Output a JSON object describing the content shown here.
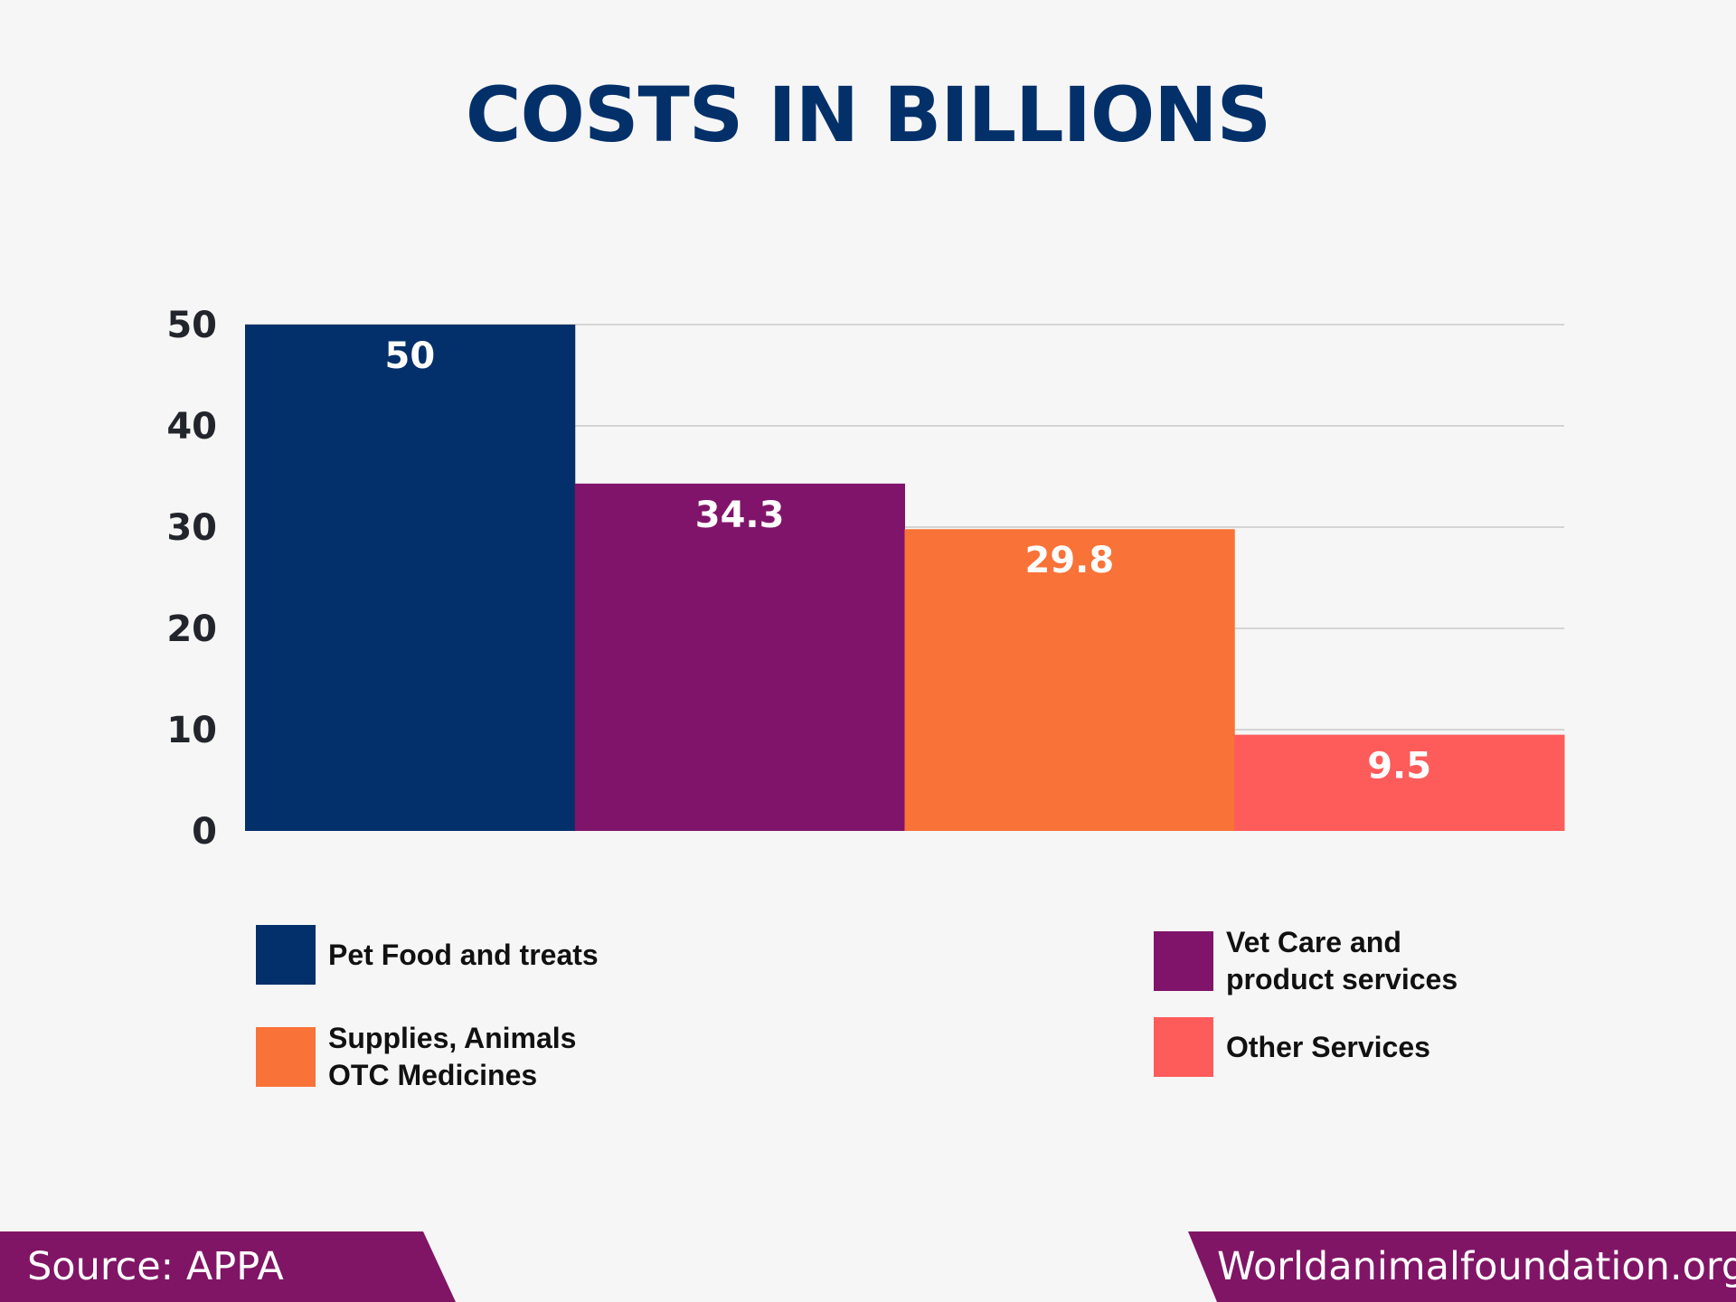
{
  "chart_data": {
    "type": "bar",
    "title": "COSTS IN BILLIONS",
    "categories": [
      "Pet Food and treats",
      "Vet Care and product services",
      "Supplies, Animals OTC Medicines",
      "Other Services"
    ],
    "values": [
      50,
      34.3,
      29.8,
      9.5
    ],
    "value_labels": [
      "50",
      "34.3",
      "29.8",
      "9.5"
    ],
    "colors": [
      "#03306a",
      "#80146a",
      "#f97237",
      "#fe5b5b"
    ],
    "ylim": [
      0,
      50
    ],
    "yticks": [
      "0",
      "10",
      "20",
      "30",
      "40",
      "50"
    ],
    "grid": true,
    "xlabel": "",
    "ylabel": "",
    "legend_position": "bottom"
  },
  "legend": [
    {
      "label": "Pet Food and treats",
      "color": "#03306a"
    },
    {
      "label": "Vet Care and product services",
      "color": "#80146a"
    },
    {
      "label": "Supplies, Animals OTC Medicines",
      "color": "#f97237"
    },
    {
      "label": "Other Services",
      "color": "#fe5b5b"
    }
  ],
  "footer": {
    "source": "Source: APPA",
    "site": "Worldanimalfoundation.org",
    "color": "#801566"
  }
}
